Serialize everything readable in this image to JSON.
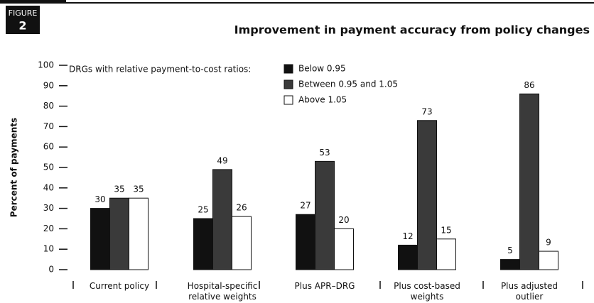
{
  "chart_data": {
    "type": "bar",
    "badge": {
      "label": "FIGURE",
      "number": "2"
    },
    "title": "Improvement in payment accuracy from policy changes",
    "y_label": "Percent of payments",
    "legend_title": "DRGs with relative payment-to-cost ratios:",
    "categories": [
      "Current policy",
      "Hospital-specific relative weights",
      "Plus APR–DRG",
      "Plus cost-based weights",
      "Plus adjusted outlier"
    ],
    "series": [
      {
        "name": "Below 0.95",
        "color": "#111111",
        "values": [
          30,
          25,
          27,
          12,
          5
        ]
      },
      {
        "name": "Between 0.95 and 1.05",
        "color": "#3a3a3a",
        "values": [
          35,
          49,
          53,
          73,
          86
        ]
      },
      {
        "name": "Above 1.05",
        "color": "#ffffff",
        "values": [
          35,
          26,
          20,
          15,
          9
        ]
      }
    ],
    "ylim": [
      0,
      100
    ],
    "yticks": [
      0,
      10,
      20,
      30,
      40,
      50,
      60,
      70,
      80,
      90,
      100
    ],
    "grid": false
  }
}
